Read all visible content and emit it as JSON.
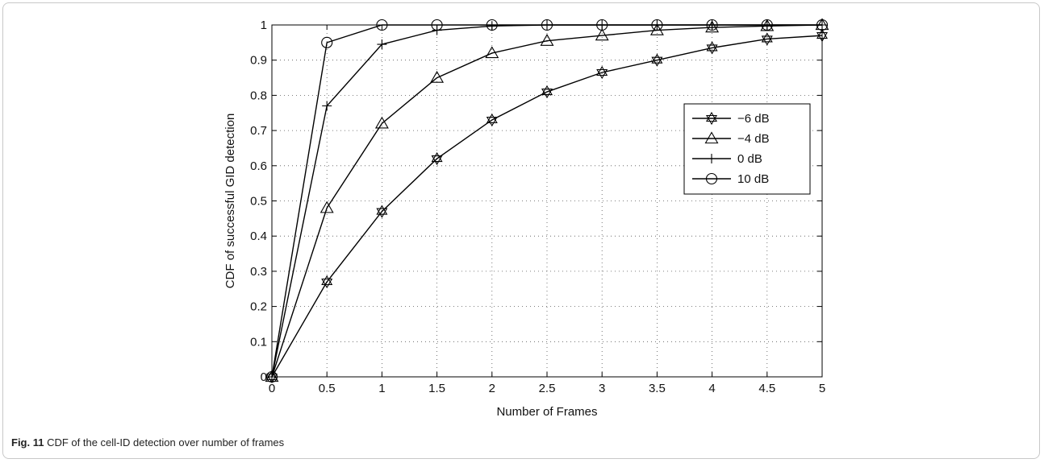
{
  "chart_data": {
    "type": "line",
    "xlabel": "Number of Frames",
    "ylabel": "CDF of successful GID detection",
    "xlim": [
      0,
      5
    ],
    "ylim": [
      0,
      1
    ],
    "xticks": [
      "0",
      "0.5",
      "1",
      "1.5",
      "2",
      "2.5",
      "3",
      "3.5",
      "4",
      "4.5",
      "5"
    ],
    "yticks": [
      "0",
      "0.1",
      "0.2",
      "0.3",
      "0.4",
      "0.5",
      "0.6",
      "0.7",
      "0.8",
      "0.9",
      "1"
    ],
    "grid": true,
    "legend_position": "right",
    "x": [
      0,
      0.5,
      1,
      1.5,
      2,
      2.5,
      3,
      3.5,
      4,
      4.5,
      5
    ],
    "series": [
      {
        "name": "−6 dB",
        "marker": "hexagram",
        "values": [
          0,
          0.27,
          0.47,
          0.62,
          0.73,
          0.81,
          0.865,
          0.9,
          0.935,
          0.96,
          0.97
        ]
      },
      {
        "name": "−4 dB",
        "marker": "triangle",
        "values": [
          0,
          0.48,
          0.72,
          0.85,
          0.92,
          0.955,
          0.97,
          0.985,
          0.993,
          0.997,
          1.0
        ]
      },
      {
        "name": "0 dB",
        "marker": "plus",
        "values": [
          0,
          0.77,
          0.945,
          0.985,
          0.997,
          1.0,
          1.0,
          1.0,
          1.0,
          1.0,
          1.0
        ]
      },
      {
        "name": "10 dB",
        "marker": "circle",
        "values": [
          0,
          0.95,
          1.0,
          1.0,
          1.0,
          1.0,
          1.0,
          1.0,
          1.0,
          1.0,
          1.0
        ]
      }
    ]
  },
  "caption": {
    "label": "Fig. 11",
    "text": "CDF of the cell-ID detection over number of frames"
  }
}
